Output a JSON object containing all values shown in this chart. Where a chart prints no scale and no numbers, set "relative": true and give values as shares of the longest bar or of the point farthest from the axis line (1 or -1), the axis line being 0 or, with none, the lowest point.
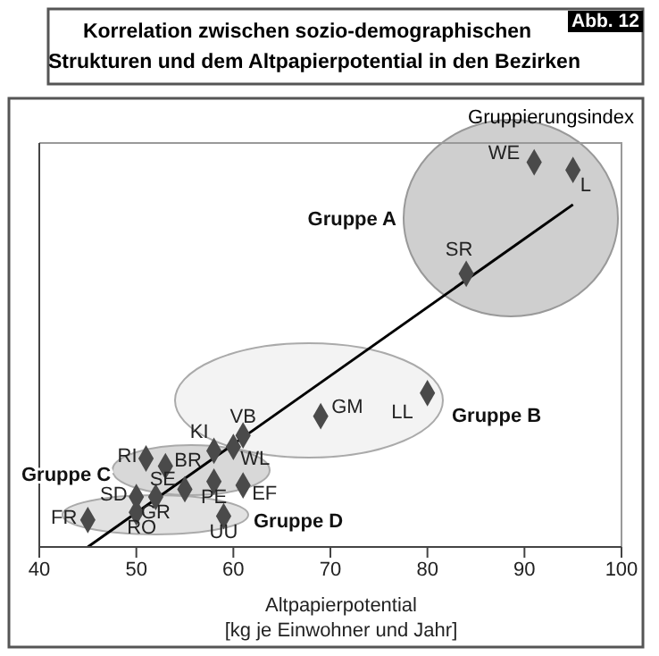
{
  "chart_data": {
    "type": "scatter",
    "title": "Korrelation zwischen sozio-demographischen\nStrukturen und dem Altpapierpotential in den Bezirken",
    "xlabel": "Altpapierpotential\n[kg je Einwohner und Jahr]",
    "ylabel": "Gruppierungsindex",
    "relative": true,
    "marker": "diamond",
    "grid": false,
    "xlim": [
      40,
      100
    ],
    "xticks": [
      40,
      50,
      60,
      70,
      80,
      90,
      100
    ],
    "series": [
      {
        "color": "#4a4a4a",
        "x": [
          91,
          95,
          84,
          80,
          69,
          61,
          58,
          60,
          51,
          53,
          55,
          58,
          61,
          50,
          52,
          50,
          59,
          45
        ],
        "values": [
          1,
          0.98,
          0.71,
          0.4,
          0.34,
          0.29,
          0.25,
          0.26,
          0.23,
          0.21,
          0.15,
          0.17,
          0.16,
          0.13,
          0.13,
          0.09,
          0.08,
          0.07
        ]
      },
      {
        "type": "line",
        "marker": "none",
        "color": "#000000",
        "x": [
          45,
          95
        ],
        "values": [
          0,
          0.89
        ]
      }
    ],
    "annotations": [
      "Abb. 12",
      "Gruppe A",
      "Gruppe B",
      "Gruppe C",
      "Gruppe D",
      {
        "text": "WE",
        "x": 91,
        "y": 1
      },
      {
        "text": "L",
        "x": 95,
        "y": 0.98
      },
      {
        "text": "SR",
        "x": 84,
        "y": 0.71
      },
      {
        "text": "LL",
        "x": 80,
        "y": 0.4
      },
      {
        "text": "GM",
        "x": 69,
        "y": 0.34
      },
      {
        "text": "VB",
        "x": 61,
        "y": 0.29
      },
      {
        "text": "KI",
        "x": 58,
        "y": 0.25
      },
      {
        "text": "WL",
        "x": 60,
        "y": 0.26
      },
      {
        "text": "RI",
        "x": 51,
        "y": 0.23
      },
      {
        "text": "BR",
        "x": 53,
        "y": 0.21
      },
      {
        "text": "SE",
        "x": 55,
        "y": 0.15
      },
      {
        "text": "PE",
        "x": 58,
        "y": 0.17
      },
      {
        "text": "EF",
        "x": 61,
        "y": 0.16
      },
      {
        "text": "SD",
        "x": 50,
        "y": 0.13
      },
      {
        "text": "GR",
        "x": 52,
        "y": 0.13
      },
      {
        "text": "RO",
        "x": 50,
        "y": 0.09
      },
      {
        "text": "UU",
        "x": 59,
        "y": 0.08
      },
      {
        "text": "FR",
        "x": 45,
        "y": 0.07
      }
    ]
  }
}
